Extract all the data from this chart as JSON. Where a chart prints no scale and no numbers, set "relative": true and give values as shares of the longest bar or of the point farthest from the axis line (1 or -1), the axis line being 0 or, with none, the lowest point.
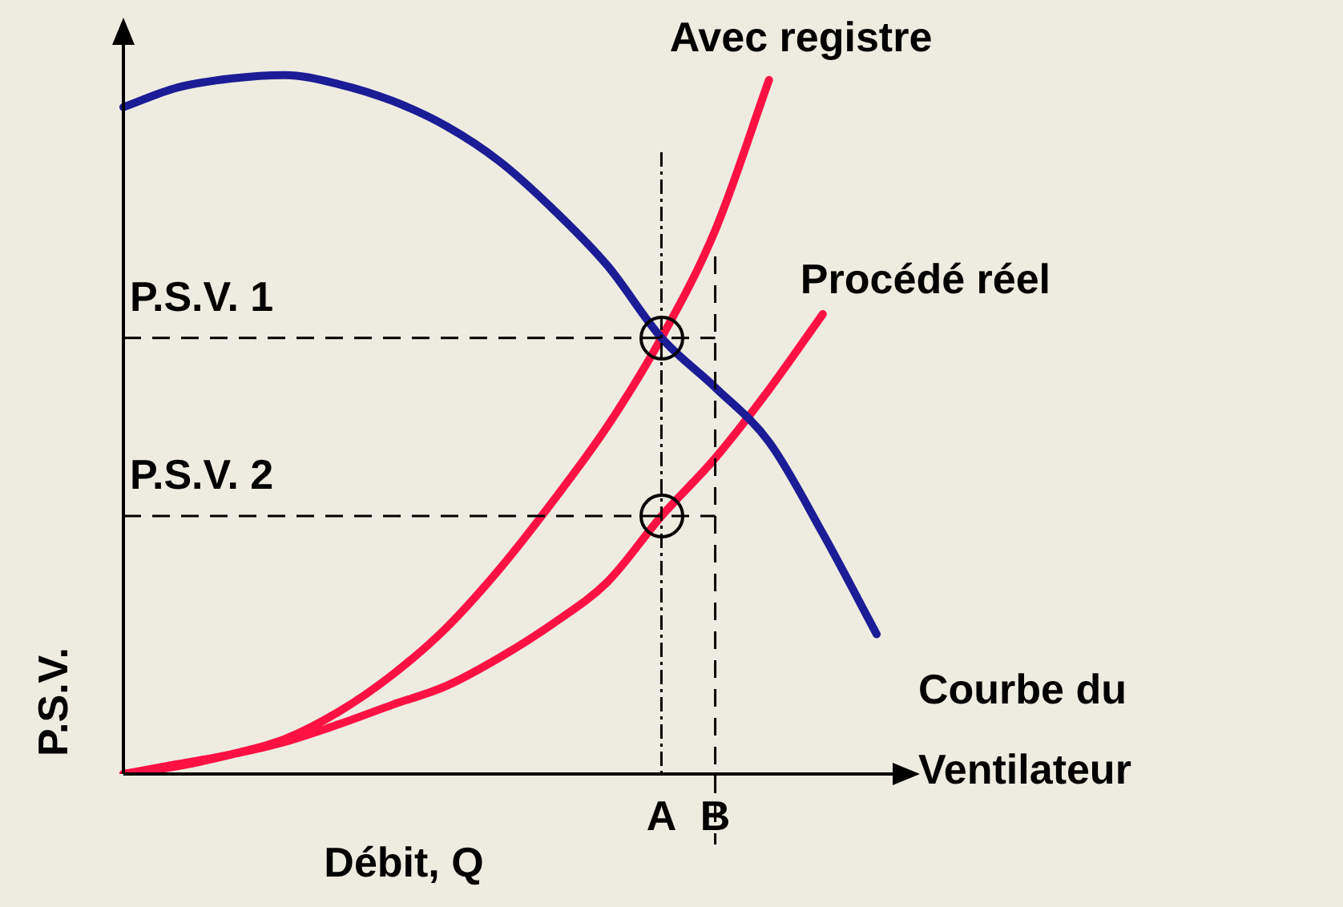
{
  "chart_data": {
    "type": "line",
    "relative": true,
    "xlabel": "Débit, Q",
    "ylabel": "P.S.V.",
    "tick_labels": "x",
    "marker": "none",
    "line_style": "solid",
    "categories": [
      null,
      null,
      null,
      null,
      null,
      null,
      null,
      null,
      null,
      null,
      "A",
      "B",
      null,
      null,
      null
    ],
    "series": [
      {
        "name": "Courbe du Ventilateur",
        "color": "#1c1c96",
        "values": [
          0.954,
          0.982,
          0.995,
          1,
          0.987,
          0.963,
          0.927,
          0.876,
          0.807,
          0.727,
          0.624,
          0.553,
          0.475,
          0.344,
          0.2
        ]
      },
      {
        "name": "Avec registre",
        "color": "#ff1144",
        "values": [
          0,
          0.011,
          0.028,
          0.05,
          0.089,
          0.142,
          0.209,
          0.294,
          0.392,
          0.498,
          0.624,
          0.778,
          0.993,
          null,
          null
        ]
      },
      {
        "name": "Procédé réel",
        "color": "#ff1144",
        "values": [
          0,
          0.014,
          0.028,
          0.046,
          0.071,
          0.099,
          0.126,
          0.167,
          0.216,
          0.275,
          0.369,
          0.452,
          0.55,
          0.658,
          null
        ]
      }
    ],
    "ref_lines": [
      {
        "axis": "y",
        "value": 0.624,
        "label": "P.S.V. 1",
        "color": "#000000",
        "line_style": "dashed"
      },
      {
        "axis": "y",
        "value": 0.369,
        "label": "P.S.V. 2",
        "color": "#000000",
        "line_style": "dashed"
      },
      {
        "axis": "x",
        "value": "A",
        "color": "#000000",
        "line_style": "dotted"
      },
      {
        "axis": "x",
        "value": "B",
        "color": "#000000",
        "line_style": "dashed"
      }
    ]
  }
}
